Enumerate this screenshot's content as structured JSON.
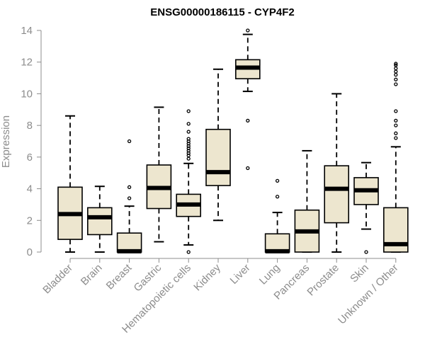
{
  "chart_data": {
    "type": "boxplot",
    "title": "ENSG00000186115 - CYP4F2",
    "ylabel": "Expression",
    "xlabel": "",
    "ylim": [
      0,
      14
    ],
    "yticks": [
      0,
      2,
      4,
      6,
      8,
      10,
      12,
      14
    ],
    "grid": false,
    "box_fill": "#ede6cf",
    "box_stroke": "#000000",
    "axis_color": "#8c8c8c",
    "categories": [
      "Bladder",
      "Brain",
      "Breast",
      "Gastric",
      "Hematopoietic cells",
      "Kidney",
      "Liver",
      "Lung",
      "Pancreas",
      "Prostate",
      "Skin",
      "Unknown / Other"
    ],
    "boxes": [
      {
        "whisker_low": 0.0,
        "q1": 0.8,
        "median": 2.4,
        "q3": 4.1,
        "whisker_high": 8.6,
        "outliers": []
      },
      {
        "whisker_low": 0.0,
        "q1": 1.1,
        "median": 2.2,
        "q3": 2.8,
        "whisker_high": 4.15,
        "outliers": []
      },
      {
        "whisker_low": 0.0,
        "q1": 0.0,
        "median": 0.05,
        "q3": 1.2,
        "whisker_high": 2.9,
        "outliers": [
          3.4,
          4.1,
          7.0
        ]
      },
      {
        "whisker_low": 0.65,
        "q1": 2.75,
        "median": 4.05,
        "q3": 5.5,
        "whisker_high": 9.15,
        "outliers": []
      },
      {
        "whisker_low": 0.45,
        "q1": 2.25,
        "median": 3.0,
        "q3": 3.65,
        "whisker_high": 5.6,
        "outliers": [
          0.0,
          5.9,
          6.1,
          6.25,
          6.4,
          6.55,
          6.7,
          6.85,
          7.0,
          7.15,
          7.6,
          8.1,
          8.9
        ]
      },
      {
        "whisker_low": 2.0,
        "q1": 4.2,
        "median": 5.05,
        "q3": 7.75,
        "whisker_high": 11.55,
        "outliers": []
      },
      {
        "whisker_low": 10.15,
        "q1": 10.95,
        "median": 11.65,
        "q3": 12.15,
        "whisker_high": 13.75,
        "outliers": [
          5.3,
          8.3,
          14.0
        ]
      },
      {
        "whisker_low": 0.0,
        "q1": 0.0,
        "median": 0.05,
        "q3": 1.15,
        "whisker_high": 2.5,
        "outliers": [
          3.5,
          4.5
        ]
      },
      {
        "whisker_low": 0.0,
        "q1": 0.0,
        "median": 1.3,
        "q3": 2.65,
        "whisker_high": 6.4,
        "outliers": []
      },
      {
        "whisker_low": 0.0,
        "q1": 1.85,
        "median": 4.0,
        "q3": 5.45,
        "whisker_high": 10.0,
        "outliers": []
      },
      {
        "whisker_low": 1.45,
        "q1": 3.0,
        "median": 3.9,
        "q3": 4.7,
        "whisker_high": 5.65,
        "outliers": [
          0.0
        ]
      },
      {
        "whisker_low": 0.0,
        "q1": 0.0,
        "median": 0.5,
        "q3": 2.8,
        "whisker_high": 6.65,
        "outliers": [
          7.2,
          7.5,
          8.0,
          8.3,
          8.9,
          10.6,
          10.9,
          11.2,
          11.4,
          11.6,
          11.8,
          11.9
        ]
      }
    ]
  }
}
